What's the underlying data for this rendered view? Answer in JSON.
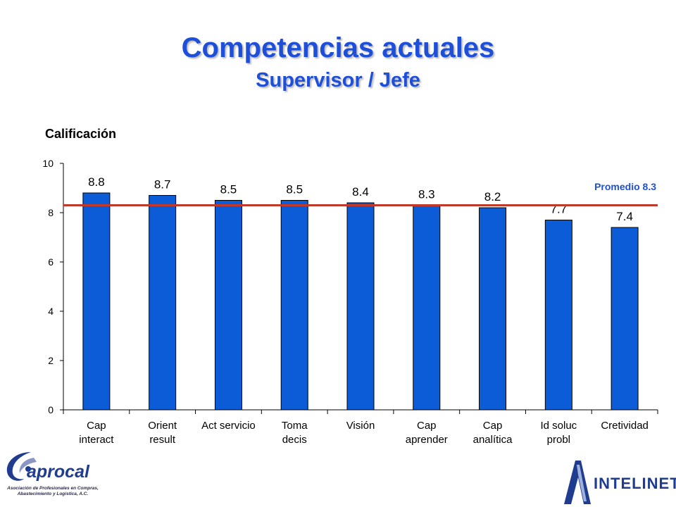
{
  "header": {
    "title": "Competencias actuales",
    "subtitle": "Supervisor / Jefe"
  },
  "chart_data": {
    "type": "bar",
    "ylabel": "Calificación",
    "xlabel": "",
    "ylim": [
      0,
      10
    ],
    "yticks": [
      0,
      2,
      4,
      6,
      8,
      10
    ],
    "categories": [
      [
        "Cap",
        "interact"
      ],
      [
        "Orient",
        "result"
      ],
      [
        "Act servicio"
      ],
      [
        "Toma",
        "decis"
      ],
      [
        "Visión"
      ],
      [
        "Cap",
        "aprender"
      ],
      [
        "Cap",
        "analítica"
      ],
      [
        "Id soluc",
        "probl"
      ],
      [
        "Cretividad"
      ]
    ],
    "values": [
      8.8,
      8.7,
      8.5,
      8.5,
      8.4,
      8.3,
      8.2,
      7.7,
      7.4
    ],
    "reference_line": {
      "value": 8.3,
      "label": "Promedio 8.3"
    },
    "grid": false,
    "bar_color": "#0b5cd6",
    "line_color": "#c0392b"
  },
  "logos": {
    "left": {
      "name": "aprocal",
      "tagline_1": "Asociación de Profesionales en Compras,",
      "tagline_2": "Abastecimiento y Logística, A.C."
    },
    "right": {
      "name": "INTELINET"
    }
  },
  "colors": {
    "title": "#1d4fd8",
    "average_label": "#1d4fd8",
    "logo": "#1f3c8f"
  }
}
